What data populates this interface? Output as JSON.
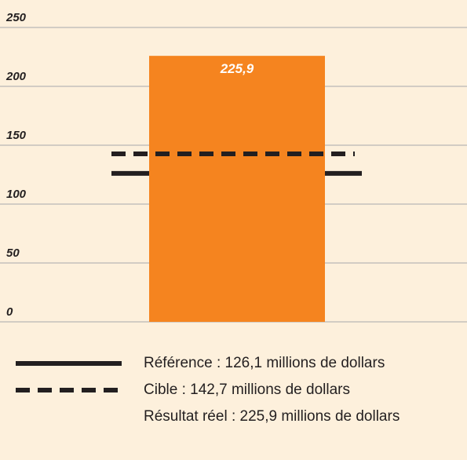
{
  "chart_data": {
    "type": "bar",
    "categories": [
      null
    ],
    "series": [
      {
        "name": "Résultat réel : 225,9 millions de dollars",
        "color": "#f5841f",
        "values": [
          225.9
        ],
        "value_labels": [
          "225,9"
        ]
      }
    ],
    "reference_lines": [
      {
        "name": "Référence : 126,1 millions de dollars",
        "value": 126.1,
        "style": "solid",
        "color": "#231f20"
      },
      {
        "name": "Cible : 142,7 millions de dollars",
        "value": 142.7,
        "style": "dashed",
        "color": "#231f20"
      }
    ],
    "ylim": [
      0,
      250
    ],
    "yticks": [
      0,
      50,
      100,
      150,
      200,
      250
    ],
    "grid": true
  }
}
